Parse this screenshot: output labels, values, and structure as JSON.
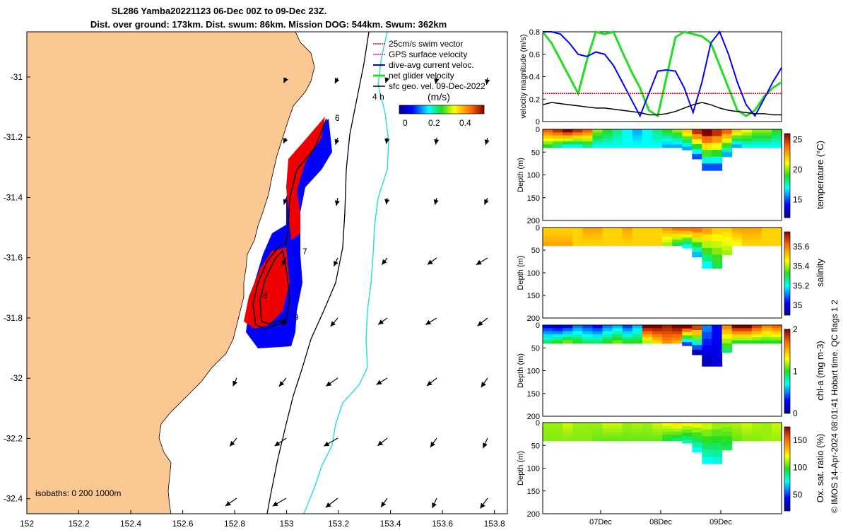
{
  "title_line1": "SL286 Yamba20221123 06-Dec 00Z to 09-Dec 23Z.",
  "title_line2": "Dist. over ground: 173km. Dist. swum: 86km. Mission DOG: 544km. Swum: 362km",
  "credit": "© IMOS 14-Apr-2024 08:01:41 Hobart time. QC flags 1  2",
  "colors": {
    "land": "#fbc893",
    "track": "#000000",
    "isobath_1000": "#33dddd",
    "dive_avg": "#0000ff",
    "gps": "#ee0000",
    "net_glider": "#22dd22"
  },
  "chart_data": [
    {
      "type": "map",
      "title": "Glider track and velocity map",
      "xlim": [
        152.0,
        153.85
      ],
      "ylim": [
        -32.45,
        -30.85
      ],
      "x_ticks": [
        "152",
        "152.2",
        "152.4",
        "152.6",
        "152.8",
        "153",
        "153.2",
        "153.4",
        "153.6",
        "153.8"
      ],
      "y_ticks": [
        "-31",
        "-31.2",
        "-31.4",
        "-31.6",
        "-31.8",
        "-32",
        "-32.2",
        "-32.4"
      ],
      "legend": [
        {
          "label": "25cm/s swim vector",
          "color": "#ee0000"
        },
        {
          "label": "GPS surface velocity",
          "color": "#dd00dd"
        },
        {
          "label": "dive-avg current veloc.",
          "color": "#0000ff"
        },
        {
          "label": "net glider velocity",
          "color": "#22dd22"
        },
        {
          "label": "sfc geo. vel. 09-Dec-2022",
          "color": "#000000"
        }
      ],
      "legend_note": "4 h",
      "colorbar": {
        "label": "(m/s)",
        "ticks": [
          "0",
          "0.2",
          "0.4"
        ],
        "range": [
          0,
          0.5
        ]
      },
      "track_day_labels": [
        "6",
        "7",
        "8",
        "9"
      ],
      "isobath_text": "isobaths: 0   200  1000m"
    },
    {
      "type": "line",
      "ylabel": "velocity magnitude (m/s)",
      "ylim": [
        0,
        0.8
      ],
      "y_ticks": [
        "0",
        "0.2",
        "0.4",
        "0.6",
        "0.8"
      ],
      "series": [
        {
          "name": "net glider velocity",
          "color": "#22dd22",
          "values": [
            0.8,
            0.7,
            0.55,
            0.4,
            0.25,
            0.55,
            0.8,
            0.78,
            0.8,
            0.62,
            0.45,
            0.3,
            0.1,
            0.05,
            0.4,
            0.75,
            0.8,
            0.78,
            0.76,
            0.7,
            0.5,
            0.3,
            0.1,
            0.05,
            0.1,
            0.22,
            0.3,
            0.35
          ]
        },
        {
          "name": "dive-avg current veloc.",
          "color": "#0000ff",
          "values": [
            0.8,
            0.8,
            0.78,
            0.7,
            0.6,
            0.58,
            0.62,
            0.6,
            0.5,
            0.35,
            0.2,
            0.05,
            0.25,
            0.45,
            0.46,
            0.45,
            0.3,
            0.08,
            0.35,
            0.7,
            0.8,
            0.6,
            0.35,
            0.15,
            0.05,
            0.2,
            0.35,
            0.48
          ]
        },
        {
          "name": "swim vector",
          "color": "#ee0000",
          "values": [
            0.25,
            0.25,
            0.25,
            0.25,
            0.25,
            0.25,
            0.25,
            0.25,
            0.25,
            0.25,
            0.25,
            0.25,
            0.25,
            0.25,
            0.25,
            0.25,
            0.25,
            0.25,
            0.25,
            0.25,
            0.25,
            0.25,
            0.25,
            0.25,
            0.25,
            0.25,
            0.25,
            0.25
          ]
        },
        {
          "name": "sfc geo. vel.",
          "color": "#000000",
          "values": [
            0.15,
            0.17,
            0.16,
            0.15,
            0.14,
            0.13,
            0.12,
            0.12,
            0.11,
            0.1,
            0.09,
            0.08,
            0.06,
            0.06,
            0.07,
            0.09,
            0.12,
            0.15,
            0.17,
            0.15,
            0.12,
            0.1,
            0.09,
            0.08,
            0.07,
            0.07,
            0.06,
            0.06
          ]
        }
      ]
    },
    {
      "type": "heatmap",
      "variable": "temperature",
      "ylabel": "Depth (m)",
      "colorbar_label": "temperature (°C)",
      "colorbar_ticks": [
        "15",
        "20",
        "25"
      ],
      "range": [
        12,
        26
      ],
      "depth_ticks": [
        "0",
        "50",
        "100",
        "150",
        "200"
      ],
      "surface_values": [
        24,
        25,
        26,
        25,
        24,
        20,
        19,
        18,
        17,
        16,
        17,
        18,
        19,
        20,
        22,
        25,
        26,
        25,
        24,
        22,
        21,
        20,
        20,
        19
      ],
      "bottom_values": [
        19,
        18,
        17,
        17,
        18,
        17,
        17,
        17,
        17,
        17,
        17,
        17,
        16,
        16,
        16,
        15,
        15,
        15,
        16,
        16,
        17,
        17,
        17,
        17
      ]
    },
    {
      "type": "heatmap",
      "variable": "salinity",
      "ylabel": "Depth (m)",
      "colorbar_label": "salinity",
      "colorbar_ticks": [
        "35",
        "35.2",
        "35.4",
        "35.6"
      ],
      "range": [
        34.9,
        35.75
      ],
      "depth_ticks": [
        "0",
        "50",
        "100",
        "150",
        "200"
      ],
      "surface_values": [
        35.5,
        35.5,
        35.5,
        35.5,
        35.55,
        35.55,
        35.5,
        35.5,
        35.55,
        35.5,
        35.5,
        35.5,
        35.55,
        35.6,
        35.6,
        35.6,
        35.55,
        35.5,
        35.5,
        35.55,
        35.55,
        35.55,
        35.5,
        35.5
      ],
      "bottom_values": [
        35.55,
        35.55,
        35.55,
        35.5,
        35.5,
        35.5,
        35.5,
        35.5,
        35.5,
        35.5,
        35.5,
        35.5,
        35.4,
        35.3,
        35.2,
        35.15,
        35.2,
        35.3,
        35.4,
        35.45,
        35.5,
        35.5,
        35.5,
        35.5
      ]
    },
    {
      "type": "heatmap",
      "variable": "chl-a",
      "ylabel": "Depth (m)",
      "colorbar_label": "chl-a (mg m-3)",
      "colorbar_ticks": [
        "0",
        "1",
        "2"
      ],
      "range": [
        0,
        2
      ],
      "depth_ticks": [
        "0",
        "50",
        "100",
        "150",
        "200"
      ],
      "surface_values": [
        0.3,
        0.2,
        0.3,
        0.5,
        0.4,
        0.3,
        0.5,
        0.6,
        0.4,
        0.6,
        2.0,
        2.0,
        1.9,
        2.0,
        2.0,
        1.8,
        0.5,
        0.3,
        1.6,
        2.0,
        2.0,
        1.8,
        1.6,
        1.7
      ],
      "bottom_values": [
        0.9,
        1.0,
        1.1,
        1.0,
        0.9,
        0.9,
        1.0,
        1.1,
        1.0,
        1.0,
        1.2,
        1.4,
        1.6,
        1.5,
        0.4,
        0.1,
        0.1,
        0.2,
        0.9,
        1.0,
        1.0,
        1.0,
        1.0,
        1.0
      ]
    },
    {
      "type": "heatmap",
      "variable": "oxygen saturation",
      "ylabel": "Depth (m)",
      "colorbar_label": "Ox. sat. ratio (%)",
      "colorbar_ticks": [
        "50",
        "100",
        "150"
      ],
      "range": [
        20,
        175
      ],
      "depth_ticks": [
        "0",
        "50",
        "100",
        "150",
        "200"
      ],
      "surface_values": [
        110,
        110,
        115,
        110,
        110,
        110,
        115,
        115,
        110,
        112,
        110,
        115,
        120,
        125,
        120,
        118,
        115,
        110,
        110,
        112,
        115,
        112,
        110,
        115
      ],
      "bottom_values": [
        108,
        108,
        108,
        108,
        108,
        105,
        105,
        105,
        105,
        105,
        105,
        105,
        95,
        90,
        82,
        75,
        75,
        78,
        92,
        105,
        108,
        108,
        110,
        110
      ]
    }
  ],
  "time_ticks": [
    "07Dec",
    "08Dec",
    "09Dec"
  ],
  "bathy_depths": [
    40,
    40,
    40,
    40,
    40,
    40,
    40,
    40,
    40,
    40,
    40,
    40,
    40,
    40,
    45,
    65,
    90,
    90,
    60,
    40,
    40,
    40,
    40,
    40
  ]
}
